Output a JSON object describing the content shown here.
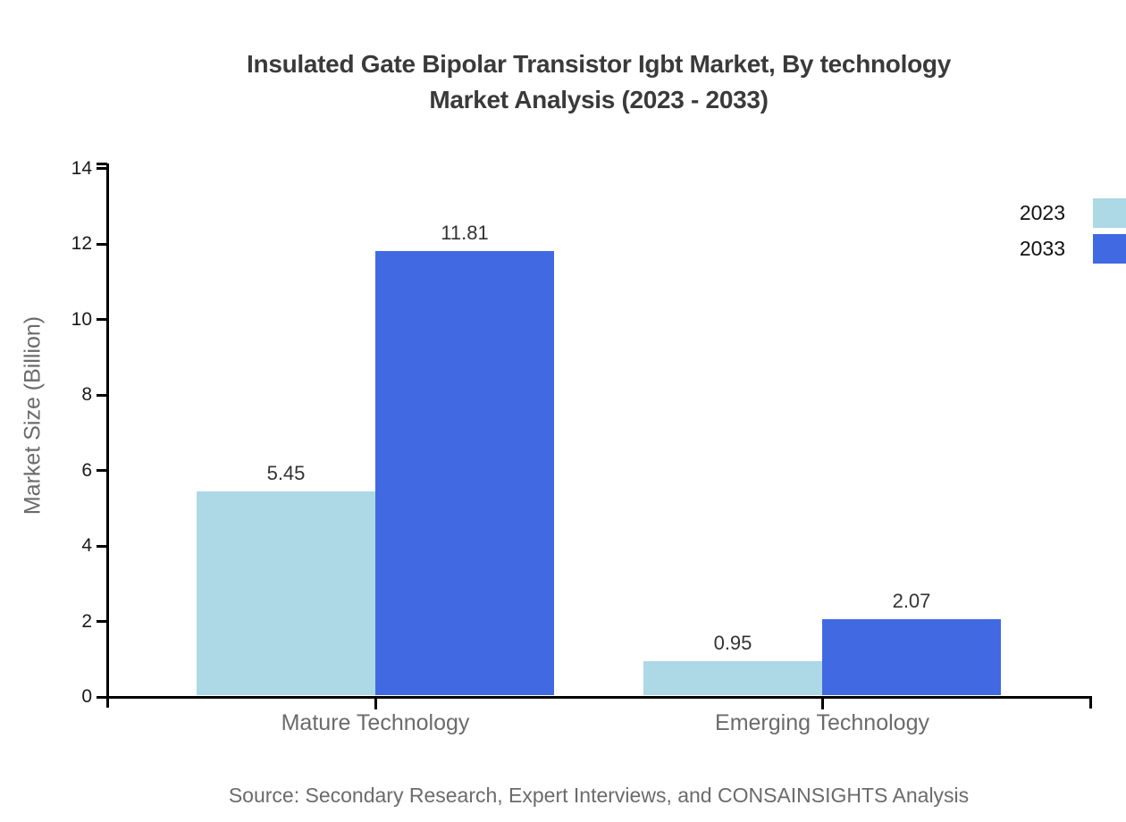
{
  "chart_data": {
    "type": "bar",
    "title": "Insulated Gate Bipolar Transistor Igbt Market, By technology Market Analysis (2023 - 2033)",
    "title_lines": [
      "Insulated Gate Bipolar Transistor Igbt Market, By technology",
      "Market Analysis (2023 - 2033)"
    ],
    "ylabel": "Market Size (Billion)",
    "xlabel": "",
    "categories": [
      "Mature Technology",
      "Emerging Technology"
    ],
    "series": [
      {
        "name": "2023",
        "color": "#ADD8E6",
        "values": [
          5.45,
          0.95
        ]
      },
      {
        "name": "2033",
        "color": "#4169E1",
        "values": [
          11.81,
          2.07
        ]
      }
    ],
    "ylim": [
      0,
      14
    ],
    "yticks": [
      0,
      2,
      4,
      6,
      8,
      10,
      12,
      14
    ],
    "grid": false,
    "legend_position": "top-right",
    "value_labels_shown": true,
    "source": "Source: Secondary Research, Expert Interviews, and CONSAINSIGHTS Analysis",
    "colors": {
      "axis": "#000000",
      "title_text": "#3a3a3a",
      "muted_text": "#6b6b6b"
    }
  }
}
